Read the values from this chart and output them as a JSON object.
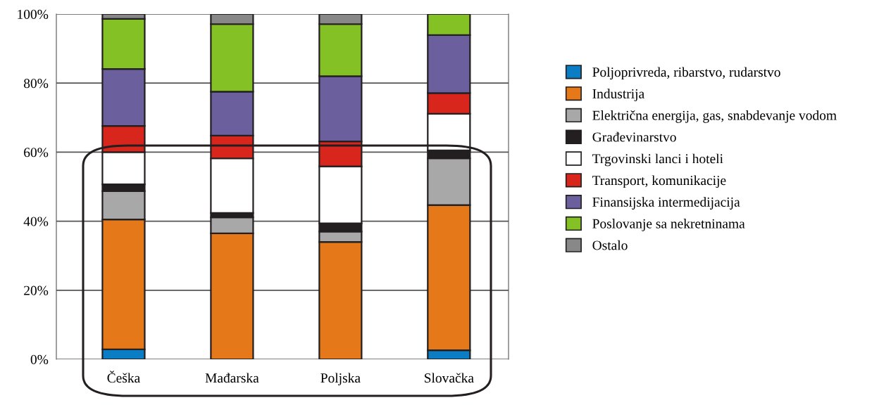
{
  "chart_data": {
    "type": "bar",
    "stacked": true,
    "categories": [
      "Češka",
      "Mađarska",
      "Poljska",
      "Slovačka"
    ],
    "series": [
      {
        "name": "Poljoprivreda, ribarstvo, rudarstvo",
        "color": "#0a7dc4",
        "values": [
          2.9,
          0,
          0,
          2.6
        ]
      },
      {
        "name": "Industrija",
        "color": "#e57818",
        "values": [
          37.6,
          36.5,
          34.0,
          42.1
        ]
      },
      {
        "name": "Električna energija, gas, snabdevanje vodom",
        "color": "#a8a8a8",
        "values": [
          8.2,
          4.6,
          3.0,
          13.5
        ]
      },
      {
        "name": "Građevinarstvo",
        "color": "#231f20",
        "values": [
          2.0,
          1.3,
          2.4,
          2.3
        ]
      },
      {
        "name": "Trgovinski lanci i hoteli",
        "color": "#ffffff",
        "values": [
          9.3,
          15.8,
          16.5,
          10.6
        ]
      },
      {
        "name": "Transport, komunikacije",
        "color": "#d9261c",
        "values": [
          7.6,
          6.6,
          7.2,
          6.0
        ]
      },
      {
        "name": "Finansijska intermedijacija",
        "color": "#6b5f9e",
        "values": [
          16.5,
          12.7,
          18.9,
          16.8
        ]
      },
      {
        "name": "Poslovanje sa nekretninama",
        "color": "#84c125",
        "values": [
          14.5,
          19.6,
          15.1,
          6.1
        ]
      },
      {
        "name": "Ostalo",
        "color": "#888888",
        "values": [
          1.4,
          2.9,
          2.9,
          0
        ]
      }
    ],
    "ylim": [
      0,
      100
    ],
    "yticks": [
      {
        "value": 0,
        "label": "0%"
      },
      {
        "value": 20,
        "label": "20%"
      },
      {
        "value": 40,
        "label": "40%"
      },
      {
        "value": 60,
        "label": "60%"
      },
      {
        "value": 80,
        "label": "80%"
      },
      {
        "value": 100,
        "label": "100%"
      }
    ],
    "grid": "y",
    "legend": "right"
  }
}
